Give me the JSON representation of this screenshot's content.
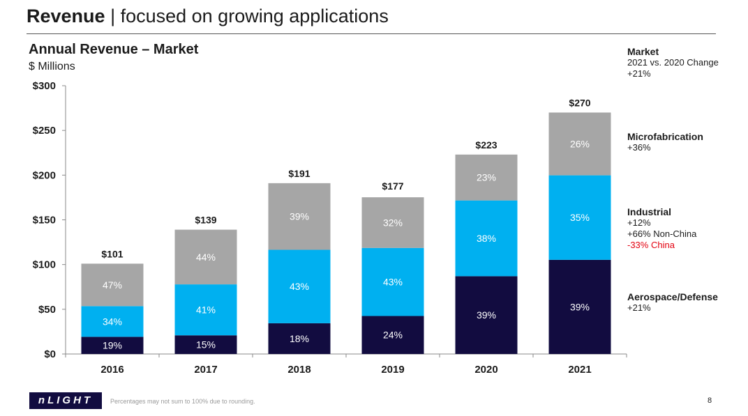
{
  "header": {
    "title_bold": "Revenue",
    "title_rest": " | focused on growing applications"
  },
  "chart_data": {
    "type": "bar",
    "stacked": true,
    "title": "Annual Revenue – Market",
    "subtitle": "$ Millions",
    "categories": [
      "2016",
      "2017",
      "2018",
      "2019",
      "2020",
      "2021"
    ],
    "totals": [
      101,
      139,
      191,
      177,
      223,
      270
    ],
    "total_labels": [
      "$101",
      "$139",
      "$191",
      "$177",
      "$223",
      "$270"
    ],
    "series": [
      {
        "name": "Aerospace/Defense",
        "color": "#120c40",
        "share_pct": [
          19,
          15,
          18,
          24,
          39,
          39
        ],
        "labels": [
          "19%",
          "15%",
          "18%",
          "24%",
          "39%",
          "39%"
        ]
      },
      {
        "name": "Industrial",
        "color": "#00b0f0",
        "share_pct": [
          34,
          41,
          43,
          43,
          38,
          35
        ],
        "labels": [
          "34%",
          "41%",
          "43%",
          "43%",
          "38%",
          "35%"
        ]
      },
      {
        "name": "Microfabrication",
        "color": "#a6a6a6",
        "share_pct": [
          47,
          44,
          39,
          32,
          23,
          26
        ],
        "labels": [
          "47%",
          "44%",
          "39%",
          "32%",
          "23%",
          "26%"
        ]
      }
    ],
    "ylim": [
      0,
      300
    ],
    "yticks": [
      0,
      50,
      100,
      150,
      200,
      250,
      300
    ],
    "ytick_labels": [
      "$0",
      "$50",
      "$100",
      "$150",
      "$200",
      "$250",
      "$300"
    ],
    "grid": false,
    "legend_position": "right"
  },
  "legend": {
    "market": {
      "title": "Market",
      "line1": "2021 vs. 2020 Change",
      "line2": "+21%"
    },
    "microfabrication": {
      "title": "Microfabrication",
      "line1": "+36%"
    },
    "industrial": {
      "title": "Industrial",
      "line1": "+12%",
      "line2": "+66% Non-China",
      "line3": "-33% China"
    },
    "aerospace": {
      "title": "Aerospace/Defense",
      "line1": "+21%"
    }
  },
  "footer": {
    "logo_text": "nLIGHT",
    "footnote": "Percentages may not sum to 100% due to rounding.",
    "page_number": "8"
  }
}
